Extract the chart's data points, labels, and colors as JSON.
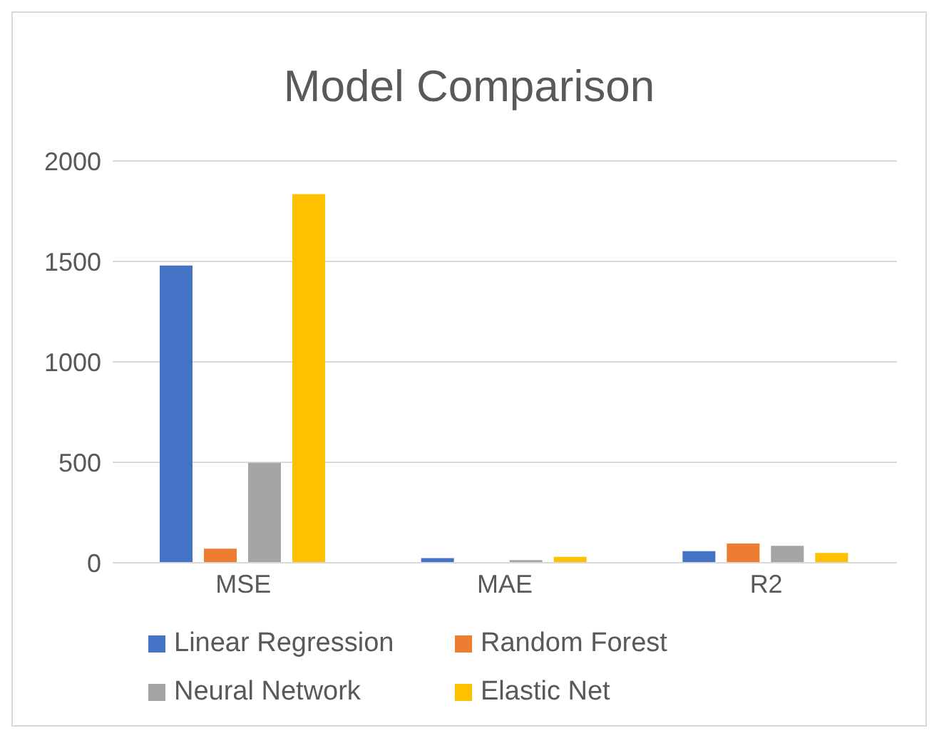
{
  "chart_data": {
    "type": "bar",
    "title": "Model Comparison",
    "categories": [
      "MSE",
      "MAE",
      "R2"
    ],
    "series": [
      {
        "name": "Linear Regression",
        "color": "#4472c4",
        "values": [
          1480,
          23,
          58
        ]
      },
      {
        "name": "Random Forest",
        "color": "#ed7d31",
        "values": [
          70,
          null,
          96
        ]
      },
      {
        "name": "Neural Network",
        "color": "#a5a5a5",
        "values": [
          497,
          13,
          84
        ]
      },
      {
        "name": "Elastic Net",
        "color": "#ffc000",
        "values": [
          1835,
          29,
          49
        ]
      }
    ],
    "ylim": [
      0,
      2000
    ],
    "yticks": [
      0,
      500,
      1000,
      1500,
      2000
    ],
    "grid": "y",
    "legend": "bottom"
  }
}
